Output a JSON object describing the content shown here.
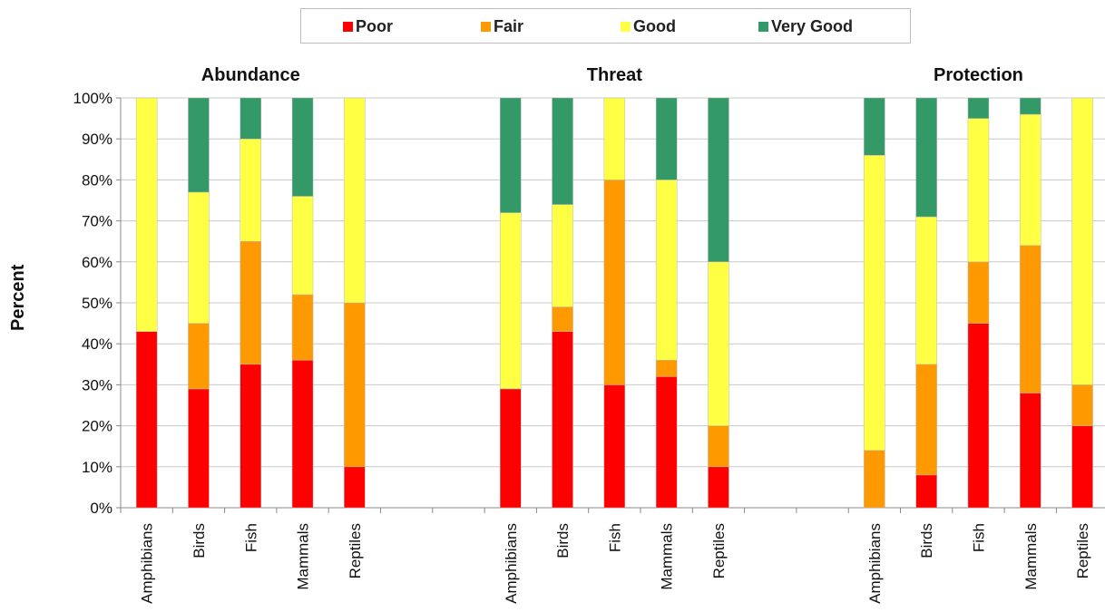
{
  "legend": {
    "items": [
      {
        "label": "Poor",
        "color": "#ff0000"
      },
      {
        "label": "Fair",
        "color": "#ff9900"
      },
      {
        "label": "Good",
        "color": "#ffff44"
      },
      {
        "label": "Very Good",
        "color": "#339966"
      }
    ]
  },
  "chart_data": {
    "type": "bar",
    "stacked": true,
    "percent_stacked": true,
    "ylabel": "Percent",
    "ylim": [
      0,
      100
    ],
    "yticks": [
      "0%",
      "10%",
      "20%",
      "30%",
      "40%",
      "50%",
      "60%",
      "70%",
      "80%",
      "90%",
      "100%"
    ],
    "grid": true,
    "legend_position": "top",
    "series_names": [
      "Poor",
      "Fair",
      "Good",
      "Very Good"
    ],
    "series_colors": [
      "#ff0000",
      "#ff9900",
      "#ffff44",
      "#339966"
    ],
    "groups": [
      {
        "title": "Abundance",
        "categories": [
          "Amphibians",
          "Birds",
          "Fish",
          "Mammals",
          "Reptiles"
        ],
        "series": [
          {
            "name": "Poor",
            "values": [
              43,
              29,
              35,
              36,
              10
            ]
          },
          {
            "name": "Fair",
            "values": [
              0,
              16,
              30,
              16,
              40
            ]
          },
          {
            "name": "Good",
            "values": [
              57,
              32,
              25,
              24,
              50
            ]
          },
          {
            "name": "Very Good",
            "values": [
              0,
              23,
              10,
              24,
              0
            ]
          }
        ]
      },
      {
        "title": "Threat",
        "categories": [
          "Amphibians",
          "Birds",
          "Fish",
          "Mammals",
          "Reptiles"
        ],
        "series": [
          {
            "name": "Poor",
            "values": [
              29,
              43,
              30,
              32,
              10
            ]
          },
          {
            "name": "Fair",
            "values": [
              0,
              6,
              50,
              4,
              10
            ]
          },
          {
            "name": "Good",
            "values": [
              43,
              25,
              20,
              44,
              40
            ]
          },
          {
            "name": "Very Good",
            "values": [
              28,
              26,
              0,
              20,
              40
            ]
          }
        ]
      },
      {
        "title": "Protection",
        "categories": [
          "Amphibians",
          "Birds",
          "Fish",
          "Mammals",
          "Reptiles"
        ],
        "series": [
          {
            "name": "Poor",
            "values": [
              0,
              8,
              45,
              28,
              20
            ]
          },
          {
            "name": "Fair",
            "values": [
              14,
              27,
              15,
              36,
              10
            ]
          },
          {
            "name": "Good",
            "values": [
              72,
              36,
              35,
              32,
              70
            ]
          },
          {
            "name": "Very Good",
            "values": [
              14,
              29,
              5,
              4,
              0
            ]
          }
        ]
      }
    ]
  }
}
